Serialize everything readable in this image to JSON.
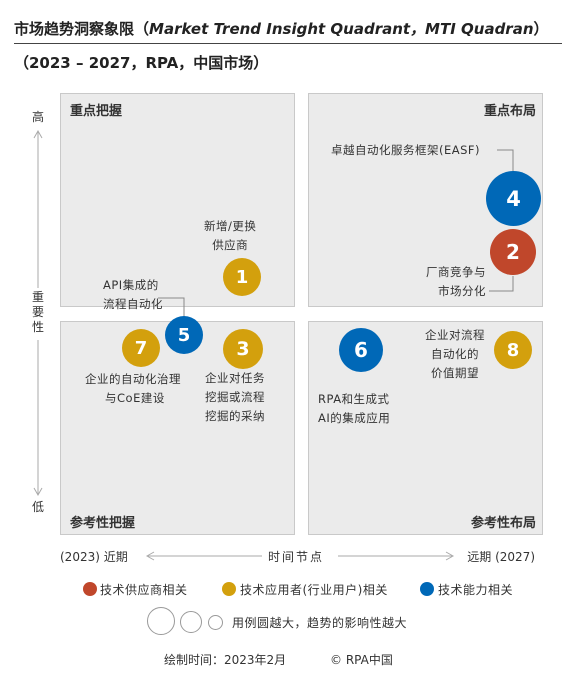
{
  "title": {
    "line1_prefix": "市场趋势洞察象限（",
    "line1_italic": "Market Trend Insight Quadrant，MTI Quadran",
    "line1_suffix": "）",
    "line2": "（2023 – 2027，RPA，中国市场）"
  },
  "chart_data": {
    "type": "quadrant",
    "quadrants": {
      "top_left": "重点把握",
      "top_right": "重点布局",
      "bottom_left": "参考性把握",
      "bottom_right": "参考性布局"
    },
    "y_axis": {
      "label": "重要性",
      "high": "高",
      "low": "低"
    },
    "x_axis": {
      "label": "时间节点",
      "left": "(2023) 近期",
      "right": "远期 (2027)"
    },
    "points": [
      {
        "id": "1",
        "label_lines": [
          "新增/更换",
          "供应商"
        ],
        "category": "user"
      },
      {
        "id": "2",
        "label_lines": [
          "厂商竞争与",
          "市场分化"
        ],
        "category": "supplier"
      },
      {
        "id": "3",
        "label_lines": [
          "企业对任务",
          "挖掘或流程",
          "挖掘的采纳"
        ],
        "category": "user"
      },
      {
        "id": "4",
        "label_lines": [
          "卓越自动化服务框架(EASF)"
        ],
        "category": "tech"
      },
      {
        "id": "5",
        "label_lines": [
          "API集成的",
          "流程自动化"
        ],
        "category": "tech"
      },
      {
        "id": "6",
        "label_lines": [
          "RPA和生成式",
          "AI的集成应用"
        ],
        "category": "tech"
      },
      {
        "id": "7",
        "label_lines": [
          "企业的自动化治理",
          "与CoE建设"
        ],
        "category": "user"
      },
      {
        "id": "8",
        "label_lines": [
          "企业对流程",
          "自动化的",
          "价值期望"
        ],
        "category": "user"
      }
    ],
    "legend": [
      {
        "key": "supplier",
        "label": "技术供应商相关",
        "color": "#c0472b"
      },
      {
        "key": "user",
        "label": "技术应用者(行业用户)相关",
        "color": "#d3a00d"
      },
      {
        "key": "tech",
        "label": "技术能力相关",
        "color": "#0068b7"
      }
    ],
    "size_note": "用例圆越大，趋势的影响性越大"
  },
  "footer": {
    "date": "绘制时间：2023年2月",
    "copyright": "© RPA中国"
  }
}
